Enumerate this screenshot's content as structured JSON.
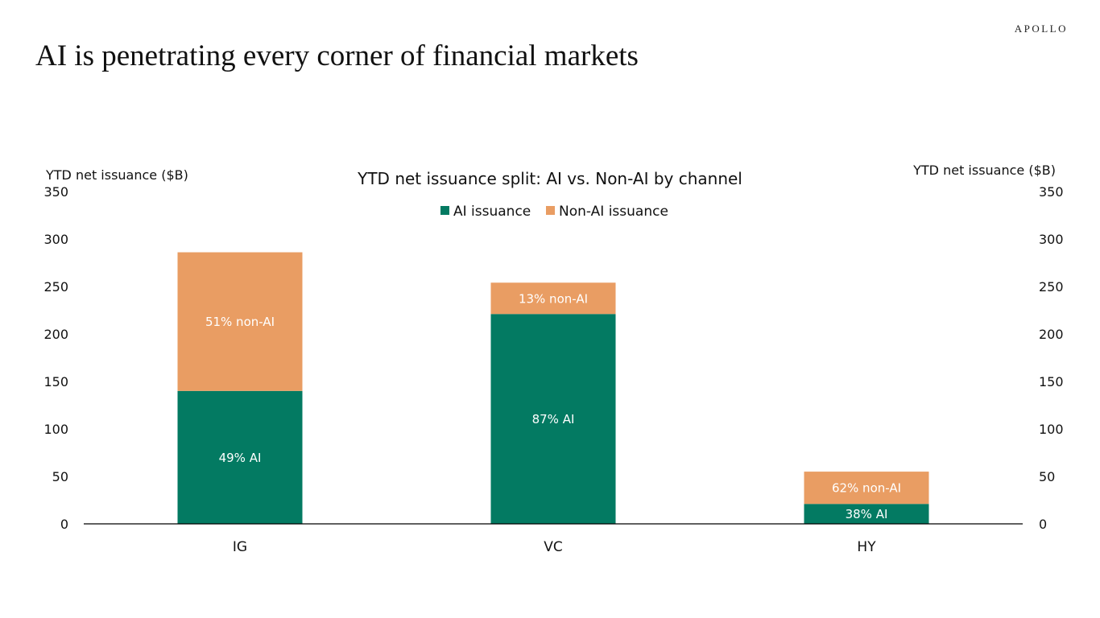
{
  "slide": {
    "brand": "APOLLO",
    "title": "AI is penetrating every corner of  financial markets"
  },
  "colors": {
    "ai": "#037a62",
    "non_ai": "#e99d63",
    "axis": "#000000",
    "text": "#111111",
    "label_text": "#ffffff"
  },
  "chart_data": {
    "type": "bar",
    "stacked": true,
    "title": "YTD net issuance split: AI vs. Non-AI by channel",
    "ylabel_left": "YTD net issuance ($B)",
    "ylabel_right": "YTD net issuance ($B)",
    "ylim": [
      0,
      350
    ],
    "yticks": [
      0,
      50,
      100,
      150,
      200,
      250,
      300,
      350
    ],
    "categories": [
      "IG",
      "VC",
      "HY"
    ],
    "legend_position": "top-center",
    "grid": false,
    "series": [
      {
        "name": "AI issuance",
        "color_key": "ai",
        "values": [
          140,
          221,
          21
        ],
        "labels": [
          "49% AI",
          "87% AI",
          "38% AI"
        ]
      },
      {
        "name": "Non-AI issuance",
        "color_key": "non_ai",
        "values": [
          146,
          33,
          34
        ],
        "labels": [
          "51% non-AI",
          "13% non-AI",
          "62% non-AI"
        ]
      }
    ]
  }
}
